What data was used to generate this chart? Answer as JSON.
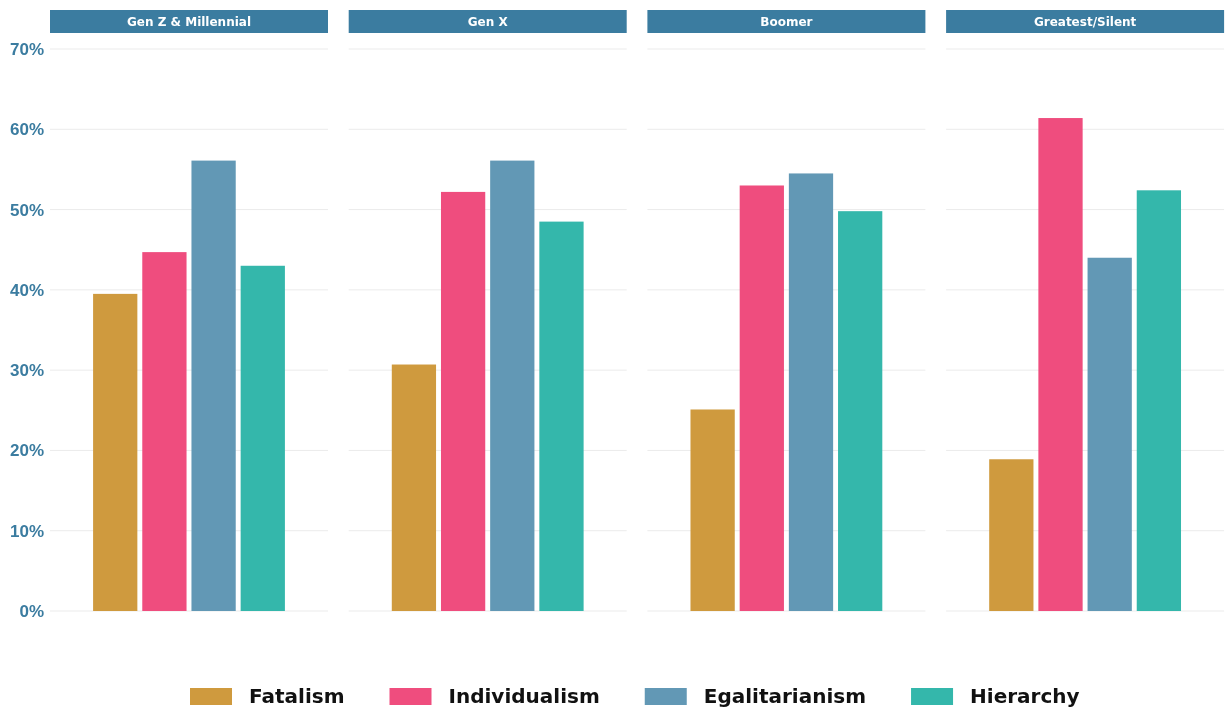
{
  "chart_data": {
    "type": "bar",
    "categories": [
      "Gen Z & Millennial",
      "Gen X",
      "Boomer",
      "Greatest/Silent"
    ],
    "ylim": [
      0,
      70
    ],
    "yticks": [
      {
        "value": 0,
        "label": "0%"
      },
      {
        "value": 10,
        "label": "10%"
      },
      {
        "value": 20,
        "label": "20%"
      },
      {
        "value": 30,
        "label": "30%"
      },
      {
        "value": 40,
        "label": "40%"
      },
      {
        "value": 50,
        "label": "50%"
      },
      {
        "value": 60,
        "label": "60%"
      },
      {
        "value": 70,
        "label": "70%"
      }
    ],
    "grid": "y",
    "legend": "bottom",
    "series": [
      {
        "name": "Fatalism",
        "color": "#cf9a3e",
        "values": [
          39.5,
          30.7,
          25.1,
          18.9
        ]
      },
      {
        "name": "Individualism",
        "color": "#ef4d7e",
        "values": [
          44.7,
          52.2,
          53.0,
          61.4
        ]
      },
      {
        "name": "Egalitarianism",
        "color": "#6298b5",
        "values": [
          56.1,
          56.1,
          54.5,
          44.0
        ]
      },
      {
        "name": "Hierarchy",
        "color": "#34b7ab",
        "values": [
          43.0,
          48.5,
          49.8,
          52.4
        ]
      }
    ]
  }
}
